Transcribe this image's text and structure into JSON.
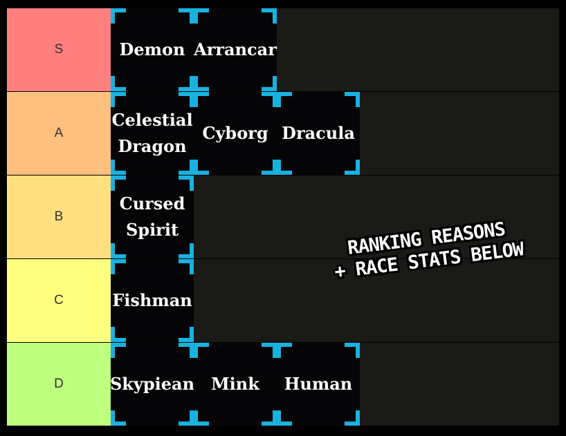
{
  "tiers": [
    {
      "label": "S",
      "color": "#ff7f7f",
      "items": [
        "Demon",
        "Arrancar"
      ]
    },
    {
      "label": "A",
      "color": "#ffbf7f",
      "items": [
        "Celestial Dragon",
        "Cyborg",
        "Dracula"
      ]
    },
    {
      "label": "B",
      "color": "#ffdf7f",
      "items": [
        "Cursed Spirit"
      ]
    },
    {
      "label": "C",
      "color": "#ffff7f",
      "items": [
        "Fishman"
      ]
    },
    {
      "label": "D",
      "color": "#bfff7f",
      "items": [
        "Skypiean",
        "Mink",
        "Human"
      ]
    }
  ],
  "overlay": {
    "line1": "RANKING REASONS",
    "line2": "+ RACE STATS BELOW"
  },
  "colors": {
    "tile_corner": "#19b2e0",
    "row_bg": "#1a1a17"
  }
}
